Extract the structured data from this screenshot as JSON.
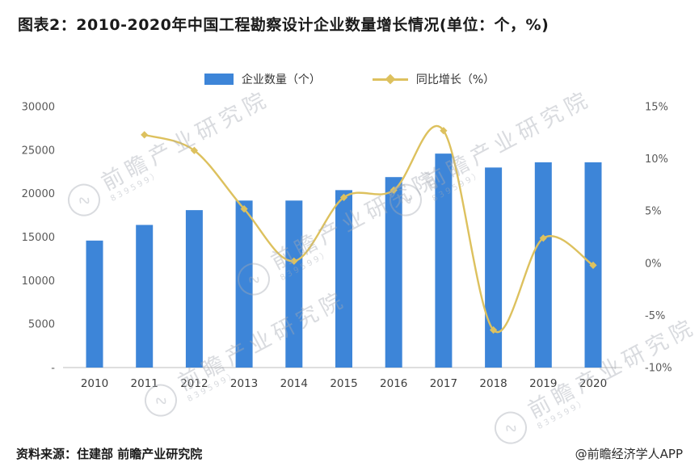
{
  "title": "图表2：2010-2020年中国工程勘察设计企业数量增长情况(单位：个，%)",
  "legend": [
    {
      "label": "企业数量（个）",
      "type": "bar",
      "color": "#3d85d8"
    },
    {
      "label": "同比增长（%）",
      "type": "line",
      "color": "#ddc15e"
    }
  ],
  "footer": {
    "source": "资料来源：住建部 前瞻产业研究院",
    "credit": "@前瞻经济学人APP"
  },
  "watermark": {
    "text": "前瞻产业研究院",
    "subtext": "839599）",
    "logo": "swoosh-circle-icon"
  },
  "colors": {
    "bar": "#3d85d8",
    "line": "#ddc15e",
    "axis_text": "#595959",
    "axis_line": "#c9c9c9",
    "title_text": "#1b1b1b"
  },
  "chart_data": {
    "type": "bar",
    "title": "2010-2020年中国工程勘察设计企业数量增长情况",
    "xlabel": "",
    "ylabel": "",
    "categories": [
      "2010",
      "2011",
      "2012",
      "2013",
      "2014",
      "2015",
      "2016",
      "2017",
      "2018",
      "2019",
      "2020"
    ],
    "series": [
      {
        "name": "企业数量（个）",
        "type": "bar",
        "axis": "left",
        "color": "#3d85d8",
        "values": [
          14600,
          16400,
          18100,
          19200,
          19200,
          20400,
          21900,
          24600,
          23000,
          23600,
          23600
        ]
      },
      {
        "name": "同比增长（%）",
        "type": "line",
        "axis": "right",
        "color": "#ddc15e",
        "values": [
          null,
          12.3,
          10.8,
          5.2,
          0.2,
          6.3,
          7.0,
          12.7,
          -6.4,
          2.4,
          -0.2
        ]
      }
    ],
    "left_axis": {
      "min": 0,
      "max": 30000,
      "step": 5000,
      "zero_label": "-",
      "grid": false
    },
    "right_axis": {
      "min": -10,
      "max": 15,
      "step": 5,
      "suffix": "%",
      "grid": false
    },
    "legend_position": "top"
  }
}
